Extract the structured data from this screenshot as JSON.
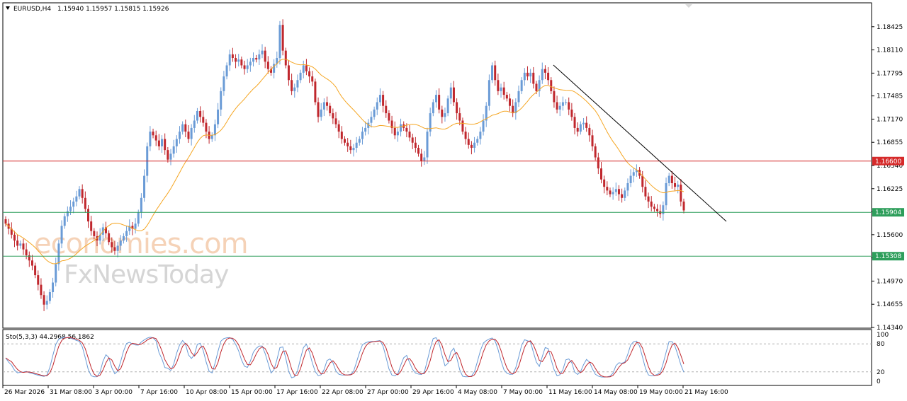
{
  "header": {
    "symbol": "EURUSD,H4",
    "values": "1.15940 1.15957 1.15815 1.15926"
  },
  "watermark": {
    "line1": "economies.com",
    "line2": "FxNewsToday"
  },
  "chart_data": {
    "type": "candlestick",
    "symbol": "EURUSD",
    "timeframe": "H4",
    "ohlc_last": {
      "open": 1.1594,
      "high": 1.15957,
      "low": 1.15815,
      "close": 1.15926
    },
    "ylim": [
      1.1434,
      1.1874
    ],
    "y_ticks": [
      "1.18425",
      "1.18110",
      "1.17795",
      "1.17485",
      "1.17170",
      "1.16855",
      "1.16540",
      "1.16225",
      "1.15910",
      "1.15600",
      "1.15285",
      "1.14970",
      "1.14655",
      "1.14340"
    ],
    "x_ticks": [
      "26 Mar 2026",
      "31 Mar 08:00",
      "3 Apr 00:00",
      "7 Apr 16:00",
      "10 Apr 08:00",
      "15 Apr 00:00",
      "17 Apr 16:00",
      "22 Apr 08:00",
      "27 Apr 00:00",
      "29 Apr 16:00",
      "4 May 08:00",
      "7 May 00:00",
      "11 May 16:00",
      "14 May 08:00",
      "19 May 00:00",
      "21 May 16:00"
    ],
    "series": [
      {
        "close": [
          1.1575,
          1.1568,
          1.156,
          1.1552,
          1.1545,
          1.1548,
          1.154,
          1.1532,
          1.1525,
          1.1518,
          1.1505,
          1.1492,
          1.1478,
          1.1465,
          1.147,
          1.1482,
          1.1495,
          1.152,
          1.1548,
          1.1572,
          1.1585,
          1.1592,
          1.1598,
          1.1605,
          1.1612,
          1.1622,
          1.161,
          1.1595,
          1.1578,
          1.1565,
          1.1558,
          1.1552,
          1.156,
          1.157,
          1.1562,
          1.155,
          1.1543,
          1.1538,
          1.1545,
          1.1552,
          1.1558,
          1.1565,
          1.1572,
          1.1568,
          1.1575,
          1.159,
          1.161,
          1.164,
          1.168,
          1.17,
          1.1695,
          1.1688,
          1.168,
          1.169,
          1.1675,
          1.1662,
          1.167,
          1.168,
          1.169,
          1.17,
          1.171,
          1.17,
          1.169,
          1.1705,
          1.1715,
          1.1728,
          1.172,
          1.1712,
          1.17,
          1.169,
          1.1695,
          1.171,
          1.173,
          1.1755,
          1.1775,
          1.179,
          1.1805,
          1.18,
          1.1795,
          1.1798,
          1.179,
          1.1785,
          1.179,
          1.1795,
          1.18,
          1.1798,
          1.1805,
          1.181,
          1.1795,
          1.1785,
          1.178,
          1.1792,
          1.18,
          1.1845,
          1.181,
          1.179,
          1.177,
          1.1755,
          1.176,
          1.177,
          1.178,
          1.179,
          1.1782,
          1.1775,
          1.1768,
          1.174,
          1.172,
          1.173,
          1.174,
          1.1735,
          1.1725,
          1.1718,
          1.171,
          1.17,
          1.169,
          1.1685,
          1.168,
          1.1675,
          1.1678,
          1.1685,
          1.169,
          1.17,
          1.1705,
          1.1712,
          1.172,
          1.173,
          1.174,
          1.175,
          1.1735,
          1.1725,
          1.1715,
          1.1705,
          1.1695,
          1.17,
          1.171,
          1.1705,
          1.17,
          1.1692,
          1.1685,
          1.1678,
          1.167,
          1.166,
          1.1665,
          1.17,
          1.1725,
          1.174,
          1.175,
          1.173,
          1.172,
          1.1725,
          1.1745,
          1.176,
          1.174,
          1.1725,
          1.1715,
          1.17,
          1.169,
          1.1682,
          1.1678,
          1.1685,
          1.169,
          1.17,
          1.1715,
          1.1735,
          1.177,
          1.179,
          1.177,
          1.1755,
          1.176,
          1.175,
          1.1745,
          1.1735,
          1.1725,
          1.174,
          1.1755,
          1.177,
          1.178,
          1.1775,
          1.178,
          1.1765,
          1.1755,
          1.177,
          1.1785,
          1.178,
          1.177,
          1.1755,
          1.174,
          1.173,
          1.1735,
          1.174,
          1.174,
          1.173,
          1.172,
          1.1705,
          1.17,
          1.171,
          1.1712,
          1.1705,
          1.1695,
          1.168,
          1.1665,
          1.165,
          1.1635,
          1.1625,
          1.162,
          1.1615,
          1.1618,
          1.1622,
          1.1615,
          1.161,
          1.162,
          1.163,
          1.164,
          1.1645,
          1.1648,
          1.164,
          1.1625,
          1.1612,
          1.1605,
          1.1598,
          1.1595,
          1.1592,
          1.1588,
          1.16,
          1.163,
          1.164,
          1.163,
          1.1625,
          1.1628,
          1.1605,
          1.1593
        ]
      },
      {
        "name": "MA",
        "kind": "moving-average",
        "color": "#f5a623"
      }
    ]
  },
  "levels": [
    {
      "value": "1.16600",
      "price": 1.166,
      "color": "#d62a2a"
    },
    {
      "value": "1.15904",
      "price": 1.15904,
      "color": "#2e9e5b"
    },
    {
      "value": "1.15308",
      "price": 1.15308,
      "color": "#2e9e5b"
    }
  ],
  "oscillator": {
    "label": "Sto(5,3,3) 44.2968 56.1862",
    "scale_labels": [
      "100",
      "80",
      "20",
      "0"
    ],
    "scale_values": [
      100,
      80,
      20,
      0
    ],
    "main_color": "#6a9bd6",
    "signal_color": "#c0272d"
  },
  "colors": {
    "bull": "#6a9bd6",
    "bear": "#c0272d",
    "grid": "#c8c8c8",
    "trendline": "#000000"
  }
}
